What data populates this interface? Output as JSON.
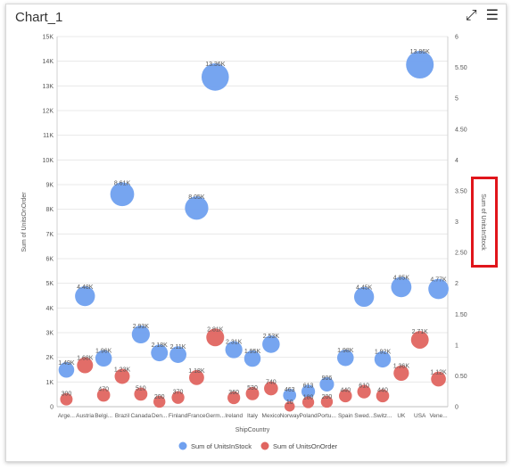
{
  "header": {
    "title": "Chart_1",
    "expand_icon": "expand-arrows-icon",
    "menu_icon": "hamburger-menu-icon"
  },
  "colors": {
    "series1": "#6fa0ef",
    "series2": "#e06560",
    "highlight": "#e0151b"
  },
  "chart_data": {
    "type": "scatter",
    "subtype": "bubble",
    "xlabel": "ShipCountry",
    "ylabel": "Sum of UnitsOnOrder",
    "y2label": "Sum of UnitsInStock",
    "ylim": [
      0,
      15000
    ],
    "yticks": [
      "0",
      "1K",
      "2K",
      "3K",
      "4K",
      "5K",
      "6K",
      "7K",
      "8K",
      "9K",
      "10K",
      "11K",
      "12K",
      "13K",
      "14K",
      "15K"
    ],
    "y2lim": [
      0,
      6
    ],
    "y2ticks": [
      "0",
      "0.50",
      "1",
      "1.50",
      "2",
      "2.50",
      "3",
      "3.50",
      "4",
      "4.50",
      "5",
      "5.50",
      "6"
    ],
    "grid": true,
    "legend_position": "bottom",
    "categories": [
      "Arge...",
      "Austria",
      "Belgi...",
      "Brazil",
      "Canada",
      "Den...",
      "Finland",
      "France",
      "Germ...",
      "Ireland",
      "Italy",
      "Mexico",
      "Norway",
      "Poland",
      "Portu...",
      "Spain",
      "Swed...",
      "Switz...",
      "UK",
      "USA",
      "Vene..."
    ],
    "series": [
      {
        "name": "Sum of UnitsInStock",
        "values": [
          1490,
          4480,
          1960,
          8610,
          2930,
          2180,
          2110,
          8050,
          13360,
          2310,
          1950,
          2530,
          463,
          613,
          906,
          1980,
          4450,
          1920,
          4850,
          13860,
          4770
        ],
        "labels": [
          "1.49K",
          "4.48K",
          "1.96K",
          "8.61K",
          "2.93K",
          "2.18K",
          "2.11K",
          "8.05K",
          "13.36K",
          "2.31K",
          "1.95K",
          "2.53K",
          "463",
          "613",
          "906",
          "1.98K",
          "4.45K",
          "1.92K",
          "4.85K",
          "13.86K",
          "4.77K"
        ]
      },
      {
        "name": "Sum of UnitsOnOrder",
        "values": [
          300,
          1680,
          470,
          1230,
          510,
          200,
          370,
          1180,
          2810,
          360,
          530,
          740,
          10,
          180,
          200,
          440,
          610,
          440,
          1360,
          2710,
          1120
        ],
        "labels": [
          "300",
          "1.68K",
          "470",
          "1.23K",
          "510",
          "200",
          "370",
          "1.18K",
          "2.81K",
          "360",
          "530",
          "740",
          "10",
          "180",
          "200",
          "440",
          "610",
          "440",
          "1.36K",
          "2.71K",
          "1.12K"
        ]
      }
    ]
  }
}
